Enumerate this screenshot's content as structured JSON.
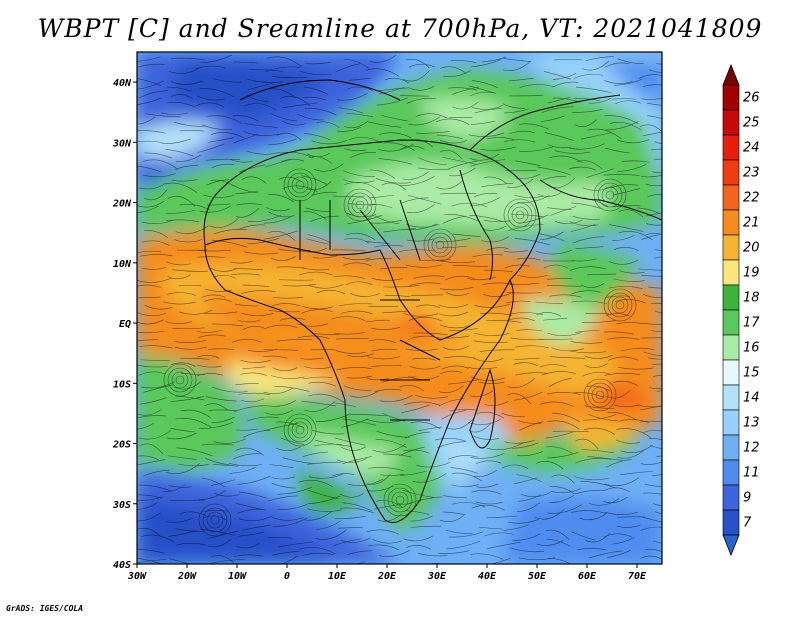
{
  "title": "WBPT [C] and Sreamline at 700hPa, VT: 2021041809",
  "credit": "GrADS: IGES/COLA",
  "map": {
    "lon_range": [
      -30,
      75
    ],
    "lat_range": [
      -40,
      45
    ],
    "lon_ticks": [
      {
        "value": -30,
        "label": "30W"
      },
      {
        "value": -20,
        "label": "20W"
      },
      {
        "value": -10,
        "label": "10W"
      },
      {
        "value": 0,
        "label": "0"
      },
      {
        "value": 10,
        "label": "10E"
      },
      {
        "value": 20,
        "label": "20E"
      },
      {
        "value": 30,
        "label": "30E"
      },
      {
        "value": 40,
        "label": "40E"
      },
      {
        "value": 50,
        "label": "50E"
      },
      {
        "value": 60,
        "label": "60E"
      },
      {
        "value": 70,
        "label": "70E"
      }
    ],
    "lat_ticks": [
      {
        "value": 40,
        "label": "40N"
      },
      {
        "value": 30,
        "label": "30N"
      },
      {
        "value": 20,
        "label": "20N"
      },
      {
        "value": 10,
        "label": "10N"
      },
      {
        "value": 0,
        "label": "EQ"
      },
      {
        "value": -10,
        "label": "10S"
      },
      {
        "value": -20,
        "label": "20S"
      },
      {
        "value": -30,
        "label": "30S"
      },
      {
        "value": -40,
        "label": "40S"
      }
    ]
  },
  "colorbar": {
    "levels": [
      {
        "label": "26",
        "color": "#a50000"
      },
      {
        "label": "25",
        "color": "#c80a0a"
      },
      {
        "label": "24",
        "color": "#e61e0a"
      },
      {
        "label": "23",
        "color": "#f03c0f"
      },
      {
        "label": "22",
        "color": "#f5641e"
      },
      {
        "label": "21",
        "color": "#f58c1e"
      },
      {
        "label": "20",
        "color": "#f5b432"
      },
      {
        "label": "19",
        "color": "#fae67d"
      },
      {
        "label": "18",
        "color": "#3cb43c"
      },
      {
        "label": "17",
        "color": "#5ac85a"
      },
      {
        "label": "16",
        "color": "#aaeba5"
      },
      {
        "label": "15",
        "color": "#e6fafa"
      },
      {
        "label": "14",
        "color": "#b4e1fa"
      },
      {
        "label": "13",
        "color": "#96d2fa"
      },
      {
        "label": "12",
        "color": "#6eaff5"
      },
      {
        "label": "11",
        "color": "#508cf0"
      },
      {
        "label": "9",
        "color": "#3c64dc"
      },
      {
        "label": "7",
        "color": "#2850c8"
      }
    ],
    "top_triangle_color": "#7a0000",
    "bottom_triangle_color": "#2864d2"
  }
}
